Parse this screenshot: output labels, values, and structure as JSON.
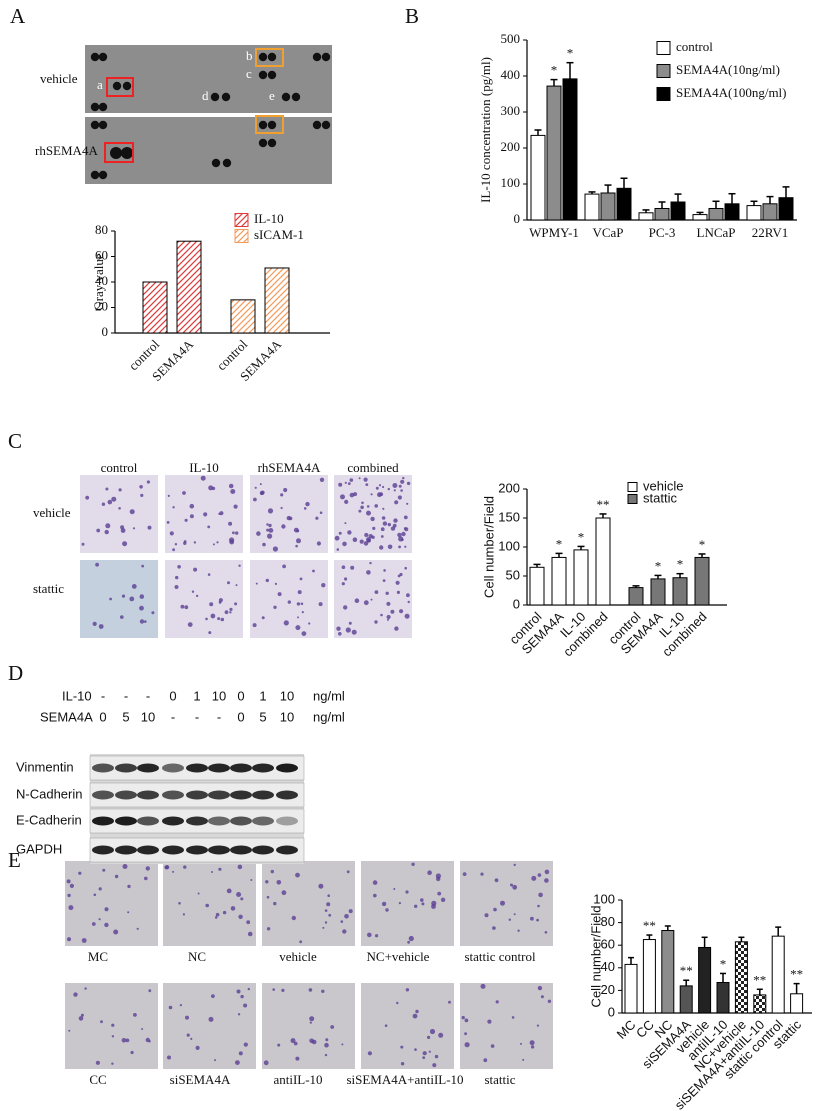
{
  "panels": [
    "A",
    "B",
    "C",
    "D",
    "E"
  ],
  "panel_a": {
    "row_labels": [
      "vehicle",
      "rhSEMA4A"
    ],
    "spot_labels": [
      "a",
      "b",
      "c",
      "d",
      "e"
    ]
  },
  "panel_c": {
    "column_labels": [
      "control",
      "IL-10",
      "rhSEMA4A",
      "combined"
    ],
    "row_labels": [
      "vehicle",
      "stattic"
    ]
  },
  "panel_d": {
    "row_headers": [
      {
        "label": "IL-10",
        "values": [
          "-",
          "-",
          "-",
          "0",
          "1",
          "10",
          "0",
          "1",
          "10"
        ],
        "unit": "ng/ml"
      },
      {
        "label": "SEMA4A",
        "values": [
          "0",
          "5",
          "10",
          "-",
          "-",
          "-",
          "0",
          "5",
          "10"
        ],
        "unit": "ng/ml"
      }
    ],
    "bands": [
      "Vinmentin",
      "N-Cadherin",
      "E-Cadherin",
      "GAPDH"
    ]
  },
  "panel_e": {
    "image_labels": [
      "MC",
      "NC",
      "vehicle",
      "NC+vehicle",
      "stattic control",
      "CC",
      "siSEMA4A",
      "antiIL-10",
      "siSEMA4A+antiIL-10",
      "stattic"
    ]
  },
  "chart_data": [
    {
      "type": "bar",
      "ylabel": "Gray value",
      "categories": [
        "control",
        "SEMA4A",
        "control",
        "SEMA4A"
      ],
      "series": [
        {
          "name": "IL-10",
          "color": "#e03a3a",
          "pattern": "hatch",
          "values": [
            40,
            72,
            null,
            null
          ]
        },
        {
          "name": "sICAM-1",
          "color": "#f29a5c",
          "pattern": "hatch",
          "values": [
            null,
            null,
            26,
            51
          ]
        }
      ],
      "ylim": [
        0,
        80
      ],
      "yticks": [
        0,
        20,
        40,
        60,
        80
      ]
    },
    {
      "type": "bar",
      "ylabel": "IL-10 concentration (pg/ml)",
      "categories": [
        "WPMY-1",
        "VCaP",
        "PC-3",
        "LNCaP",
        "22RV1"
      ],
      "series": [
        {
          "name": "control",
          "color": "#ffffff",
          "values": [
            235,
            72,
            20,
            15,
            40
          ],
          "errors": [
            15,
            6,
            8,
            6,
            12
          ],
          "significance": [
            null,
            null,
            null,
            null,
            null
          ]
        },
        {
          "name": "SEMA4A(10ng/ml)",
          "color": "#8c8c8c",
          "values": [
            372,
            75,
            32,
            32,
            45
          ],
          "errors": [
            18,
            22,
            18,
            20,
            20
          ],
          "significance": [
            "*",
            null,
            null,
            null,
            null
          ]
        },
        {
          "name": "SEMA4A(100ng/ml)",
          "color": "#000000",
          "values": [
            392,
            88,
            50,
            45,
            62
          ],
          "errors": [
            45,
            28,
            22,
            28,
            30
          ],
          "significance": [
            "*",
            null,
            null,
            null,
            null
          ]
        }
      ],
      "ylim": [
        0,
        500
      ],
      "yticks": [
        0,
        100,
        200,
        300,
        400,
        500
      ]
    },
    {
      "type": "bar",
      "ylabel": "Cell number/Field",
      "categories": [
        "control",
        "SEMA4A",
        "IL-10",
        "combined",
        "control",
        "SEMA4A",
        "IL-10",
        "combined"
      ],
      "series": [
        {
          "name": "vehicle",
          "color": "#ffffff",
          "values": [
            65,
            82,
            95,
            150,
            null,
            null,
            null,
            null
          ],
          "errors": [
            5,
            7,
            6,
            7,
            null,
            null,
            null,
            null
          ],
          "significance": [
            null,
            "*",
            "*",
            "**",
            null,
            null,
            null,
            null
          ]
        },
        {
          "name": "stattic",
          "color": "#777777",
          "values": [
            null,
            null,
            null,
            null,
            30,
            45,
            47,
            82
          ],
          "errors": [
            null,
            null,
            null,
            null,
            3,
            6,
            7,
            6
          ],
          "significance": [
            null,
            null,
            null,
            null,
            null,
            "*",
            "*",
            "*"
          ]
        }
      ],
      "ylim": [
        0,
        200
      ],
      "yticks": [
        0,
        50,
        100,
        150,
        200
      ]
    },
    {
      "type": "bar",
      "ylabel": "Cell number/Field",
      "categories": [
        "MC",
        "CC",
        "NC",
        "siSEMA4A",
        "vehicle",
        "antiIL-10",
        "NC+vehicle",
        "siSEMA4A+antiIL-10",
        "stattic control",
        "stattic"
      ],
      "values": [
        43,
        65,
        73,
        24,
        58,
        27,
        63,
        16,
        68,
        17
      ],
      "errors": [
        6,
        4,
        4,
        5,
        9,
        8,
        4,
        5,
        8,
        9
      ],
      "significance": [
        null,
        "**",
        null,
        "**",
        null,
        "*",
        null,
        "**",
        null,
        "**"
      ],
      "colors": [
        "#ffffff",
        "#ffffff",
        "#8c8c8c",
        "#555555",
        "#222222",
        "#333333",
        "#ffffff",
        "#ffffff",
        "#ffffff",
        "#ffffff"
      ],
      "patterns": [
        null,
        null,
        null,
        null,
        null,
        null,
        "checker",
        "checker",
        null,
        null
      ],
      "ylim": [
        0,
        100
      ],
      "yticks": [
        0,
        20,
        40,
        60,
        80,
        100
      ]
    }
  ]
}
